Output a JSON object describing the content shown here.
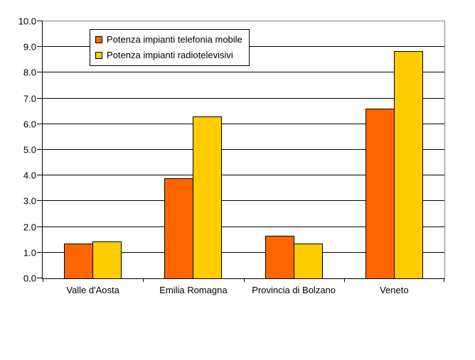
{
  "chart_data": {
    "type": "bar",
    "title": "",
    "xlabel": "",
    "ylabel": "",
    "categories": [
      "Valle d'Aosta",
      "Emilia Romagna",
      "Provincia di Bolzano",
      "Veneto"
    ],
    "series": [
      {
        "name": "Potenza impianti telefonia mobile",
        "color": "#FF6600",
        "values": [
          1.35,
          3.9,
          1.65,
          6.6
        ]
      },
      {
        "name": "Potenza impianti radiotelevisivi",
        "color": "#FFCC00",
        "values": [
          1.45,
          6.3,
          1.35,
          8.85
        ]
      }
    ],
    "ylim": [
      0,
      10
    ],
    "ytick_step": 1.0,
    "ytick_decimals": 1,
    "grid": true,
    "legend_position": "inside-top-left"
  },
  "style_colors": {
    "series_telefonia_mobile": "#FF6600",
    "series_radiotelevisivi": "#FFCC00",
    "gridline": "#000000",
    "axis_line": "#000000",
    "plot_border": "#808080",
    "bar_border": "#000000",
    "legend_border": "#000000",
    "background": "#FFFFFF",
    "text": "#000000"
  }
}
